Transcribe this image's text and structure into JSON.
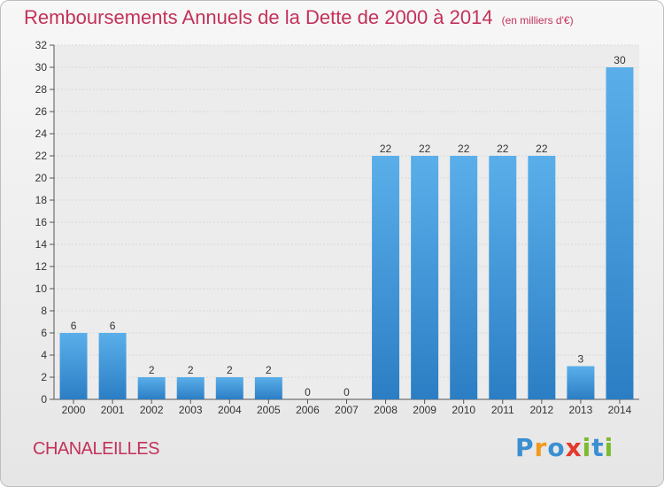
{
  "title": "Remboursements Annuels de la Dette de 2000 à 2014",
  "unit": "(en milliers d'€)",
  "commune": "CHANALEILLES",
  "logo": {
    "letters": [
      "P",
      "r",
      "o",
      "x",
      "i",
      "t",
      "i"
    ],
    "colors": [
      "#3a8fd1",
      "#f29a1d",
      "#3a8fd1",
      "#e23a2c",
      "#7dbb2e",
      "#3a8fd1",
      "#7dbb2e"
    ]
  },
  "chart_data": {
    "type": "bar",
    "title": "Remboursements Annuels de la Dette de 2000 à 2014",
    "categories": [
      "2000",
      "2001",
      "2002",
      "2003",
      "2004",
      "2005",
      "2006",
      "2007",
      "2008",
      "2009",
      "2010",
      "2011",
      "2012",
      "2013",
      "2014"
    ],
    "values": [
      6,
      6,
      2,
      2,
      2,
      2,
      0,
      0,
      22,
      22,
      22,
      22,
      22,
      3,
      30
    ],
    "ylim": [
      0,
      32
    ],
    "yticks": [
      0,
      2,
      4,
      6,
      8,
      10,
      12,
      14,
      16,
      18,
      20,
      22,
      24,
      26,
      28,
      30,
      32
    ],
    "grid": true,
    "bar_color": "#4a9fe0"
  }
}
